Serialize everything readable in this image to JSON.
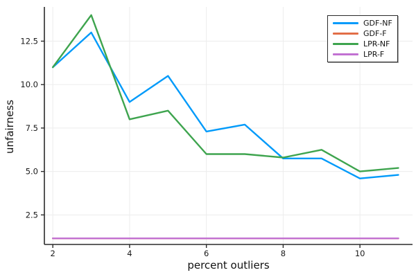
{
  "figure": {
    "background": "#ffffff"
  },
  "chart_data": {
    "type": "line",
    "title": "",
    "xlabel": "percent outliers",
    "ylabel": "unfairness",
    "x": [
      2,
      3,
      4,
      5,
      6,
      7,
      8,
      9,
      10,
      11
    ],
    "series": [
      {
        "name": "GDF-NF",
        "color": "#009AFA",
        "values": [
          11.0,
          13.0,
          9.0,
          10.5,
          7.3,
          7.7,
          5.75,
          5.75,
          4.6,
          4.8
        ]
      },
      {
        "name": "GDF-F",
        "color": "#E26E47",
        "values": [
          1.15,
          1.15,
          1.15,
          1.15,
          1.15,
          1.15,
          1.15,
          1.15,
          1.15,
          1.15
        ]
      },
      {
        "name": "LPR-NF",
        "color": "#3EA44E",
        "values": [
          11.0,
          14.0,
          8.0,
          8.5,
          6.0,
          6.0,
          5.8,
          6.25,
          5.0,
          5.2
        ]
      },
      {
        "name": "LPR-F",
        "color": "#C271D2",
        "values": [
          1.15,
          1.15,
          1.15,
          1.15,
          1.15,
          1.15,
          1.15,
          1.15,
          1.15,
          1.15
        ]
      }
    ],
    "xlim": [
      1.78,
      11.37
    ],
    "ylim": [
      0.8,
      14.47
    ],
    "xticks": {
      "values": [
        2,
        4,
        6,
        8,
        10
      ],
      "labels": [
        "2",
        "4",
        "6",
        "8",
        "10"
      ]
    },
    "yticks": {
      "values": [
        2.5,
        5.0,
        7.5,
        10.0,
        12.5
      ],
      "labels": [
        "2.5",
        "5.0",
        "7.5",
        "10.0",
        "12.5"
      ]
    },
    "grid": true,
    "legend_position": "top-right",
    "colors": {
      "axis": "#2a2a2a",
      "grid": "#ececec",
      "tick_label": "#1a1a1a",
      "legend_border": "#2a2a2a",
      "legend_bg": "#ffffff"
    }
  }
}
